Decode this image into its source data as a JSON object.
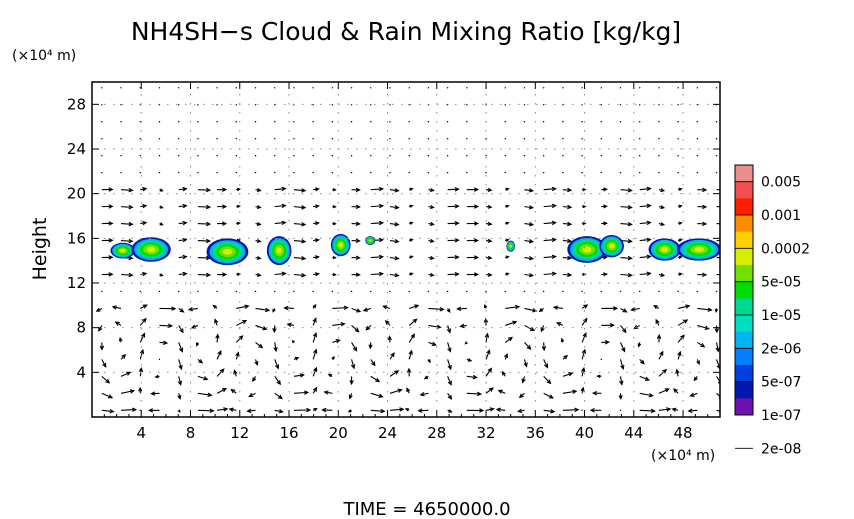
{
  "chart_data": {
    "type": "heatmap",
    "title": "NH4SH−s Cloud & Rain Mixing Ratio [kg/kg]",
    "xlabel": "",
    "x_unit_label": "(×10⁴ m)",
    "ylabel": "Height",
    "y_unit_label": "(×10⁴ m)",
    "xlim": [
      0,
      51
    ],
    "ylim": [
      0,
      30
    ],
    "x_ticks": [
      4,
      8,
      12,
      16,
      20,
      24,
      28,
      32,
      36,
      40,
      44,
      48
    ],
    "y_ticks": [
      4,
      8,
      12,
      16,
      20,
      24,
      28
    ],
    "grid": true,
    "colorbar": {
      "placement": "right",
      "labels": [
        "0.005",
        "0.001",
        "0.0002",
        "5e-05",
        "1e-05",
        "2e-06",
        "5e-07",
        "1e-07",
        "2e-08"
      ],
      "colors": [
        "#e89090",
        "#f05050",
        "#ff2000",
        "#ff8c00",
        "#ffd000",
        "#d4f000",
        "#70e000",
        "#00dc00",
        "#00d890",
        "#00e0c0",
        "#00b4f0",
        "#0080ff",
        "#0040e0",
        "#0018b0",
        "#7010b0"
      ]
    },
    "clouds": [
      {
        "x": 2.5,
        "y": 14.9,
        "rx": 1.0,
        "ry": 0.7
      },
      {
        "x": 4.8,
        "y": 15.0,
        "rx": 1.6,
        "ry": 1.1
      },
      {
        "x": 11.0,
        "y": 14.8,
        "rx": 1.7,
        "ry": 1.2
      },
      {
        "x": 15.2,
        "y": 14.9,
        "rx": 1.0,
        "ry": 1.3
      },
      {
        "x": 20.2,
        "y": 15.4,
        "rx": 0.8,
        "ry": 1.0
      },
      {
        "x": 22.6,
        "y": 15.8,
        "rx": 0.4,
        "ry": 0.4
      },
      {
        "x": 34.0,
        "y": 15.3,
        "rx": 0.35,
        "ry": 0.5
      },
      {
        "x": 40.2,
        "y": 15.0,
        "rx": 1.6,
        "ry": 1.2
      },
      {
        "x": 42.2,
        "y": 15.3,
        "rx": 1.0,
        "ry": 1.0
      },
      {
        "x": 46.5,
        "y": 15.0,
        "rx": 1.3,
        "ry": 1.0
      },
      {
        "x": 49.3,
        "y": 15.0,
        "rx": 1.8,
        "ry": 1.0
      }
    ],
    "time_label": "TIME = 4650000.0"
  }
}
